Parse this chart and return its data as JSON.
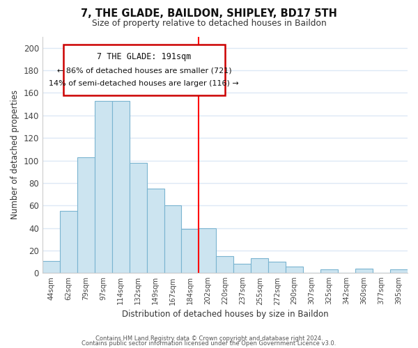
{
  "title": "7, THE GLADE, BAILDON, SHIPLEY, BD17 5TH",
  "subtitle": "Size of property relative to detached houses in Baildon",
  "xlabel": "Distribution of detached houses by size in Baildon",
  "ylabel": "Number of detached properties",
  "footer_line1": "Contains HM Land Registry data © Crown copyright and database right 2024.",
  "footer_line2": "Contains public sector information licensed under the Open Government Licence v3.0.",
  "bin_labels": [
    "44sqm",
    "62sqm",
    "79sqm",
    "97sqm",
    "114sqm",
    "132sqm",
    "149sqm",
    "167sqm",
    "184sqm",
    "202sqm",
    "220sqm",
    "237sqm",
    "255sqm",
    "272sqm",
    "290sqm",
    "307sqm",
    "325sqm",
    "342sqm",
    "360sqm",
    "377sqm",
    "395sqm"
  ],
  "bar_values": [
    11,
    55,
    103,
    153,
    153,
    98,
    75,
    60,
    39,
    40,
    15,
    8,
    13,
    10,
    6,
    0,
    3,
    0,
    4,
    0,
    3
  ],
  "bar_color": "#cce4f0",
  "bar_edge_color": "#7ab4d0",
  "vline_x_index": 8,
  "vline_color": "red",
  "ylim": [
    0,
    210
  ],
  "yticks": [
    0,
    20,
    40,
    60,
    80,
    100,
    120,
    140,
    160,
    180,
    200
  ],
  "annotation_title": "7 THE GLADE: 191sqm",
  "annotation_line1": "← 86% of detached houses are smaller (721)",
  "annotation_line2": "14% of semi-detached houses are larger (116) →",
  "box_facecolor": "#ffffff",
  "box_edge_color": "#cc0000",
  "background_color": "#ffffff",
  "grid_color": "#dde8f5"
}
